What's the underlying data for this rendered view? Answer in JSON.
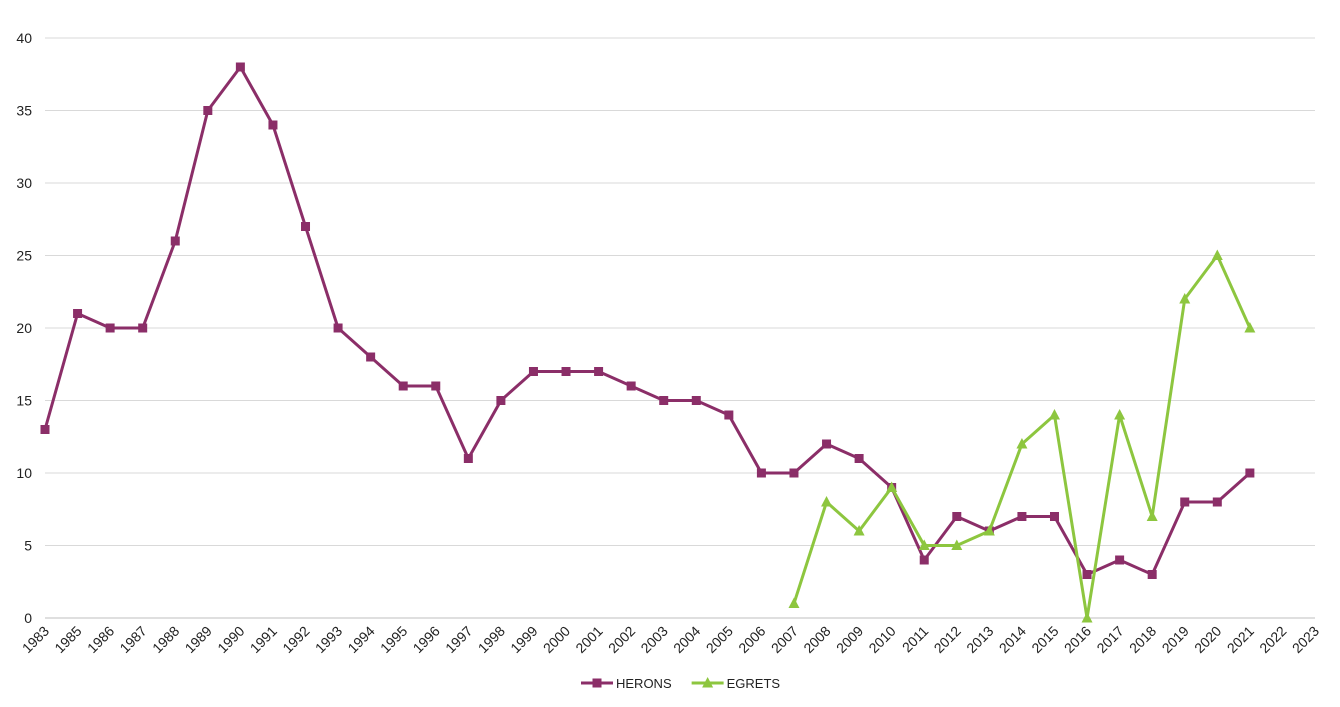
{
  "chart_data": {
    "type": "line",
    "categories": [
      "1983",
      "1985",
      "1986",
      "1987",
      "1988",
      "1989",
      "1990",
      "1991",
      "1992",
      "1993",
      "1994",
      "1995",
      "1996",
      "1997",
      "1998",
      "1999",
      "2000",
      "2001",
      "2002",
      "2003",
      "2004",
      "2005",
      "2006",
      "2007",
      "2008",
      "2009",
      "2010",
      "2011",
      "2012",
      "2013",
      "2014",
      "2015",
      "2016",
      "2017",
      "2018",
      "2019",
      "2020",
      "2021",
      "2022",
      "2023"
    ],
    "y_ticks": [
      "0",
      "5",
      "10",
      "15",
      "20",
      "25",
      "30",
      "35",
      "40"
    ],
    "ylim": [
      0,
      40
    ],
    "grid": true,
    "legend_position": "bottom",
    "series": [
      {
        "name": "HERONS",
        "color": "#8b2e68",
        "marker": "square",
        "values": [
          13,
          21,
          20,
          20,
          26,
          35,
          38,
          34,
          27,
          20,
          18,
          16,
          16,
          11,
          15,
          17,
          17,
          17,
          16,
          15,
          15,
          14,
          10,
          10,
          12,
          11,
          9,
          4,
          7,
          6,
          7,
          7,
          3,
          4,
          3,
          8,
          8,
          10,
          null,
          null
        ]
      },
      {
        "name": "EGRETS",
        "color": "#8dc63f",
        "marker": "triangle",
        "values": [
          null,
          null,
          null,
          null,
          null,
          null,
          null,
          null,
          null,
          null,
          null,
          null,
          null,
          null,
          null,
          null,
          null,
          null,
          null,
          null,
          null,
          null,
          null,
          1,
          8,
          6,
          9,
          5,
          5,
          6,
          12,
          14,
          0,
          14,
          7,
          22,
          25,
          20,
          null,
          null
        ]
      }
    ]
  }
}
